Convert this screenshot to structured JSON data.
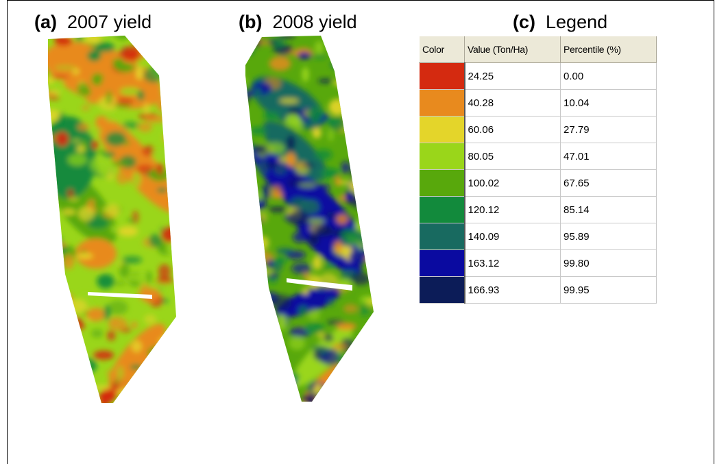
{
  "panels": {
    "a": {
      "letter": "(a)",
      "title": "2007 yield"
    },
    "b": {
      "letter": "(b)",
      "title": "2008 yield"
    },
    "c": {
      "letter": "(c)",
      "title": "Legend"
    }
  },
  "legend": {
    "headers": [
      "Color",
      "Value (Ton/Ha)",
      "Percentile (%)"
    ],
    "rows": [
      {
        "color": "#d42a10",
        "value": "24.25",
        "percentile": "0.00"
      },
      {
        "color": "#e88a1e",
        "value": "40.28",
        "percentile": "10.04"
      },
      {
        "color": "#e4d52a",
        "value": "60.06",
        "percentile": "27.79"
      },
      {
        "color": "#9ad61a",
        "value": "80.05",
        "percentile": "47.01"
      },
      {
        "color": "#58a80c",
        "value": "100.02",
        "percentile": "67.65"
      },
      {
        "color": "#128a3c",
        "value": "120.12",
        "percentile": "85.14"
      },
      {
        "color": "#186a60",
        "value": "140.09",
        "percentile": "95.89"
      },
      {
        "color": "#0a0aa0",
        "value": "163.12",
        "percentile": "99.80"
      },
      {
        "color": "#0c1c58",
        "value": "166.93",
        "percentile": "99.95"
      }
    ]
  },
  "maps": {
    "a": {
      "base_color": "#9ad61a",
      "patch_colors": [
        "#e88a1e",
        "#58a80c",
        "#128a3c",
        "#e4d52a",
        "#9ad61a",
        "#d42a10"
      ]
    },
    "b": {
      "base_color": "#58a80c",
      "patch_colors": [
        "#0a0aa0",
        "#186a60",
        "#9ad61a",
        "#128a3c",
        "#e4d52a",
        "#e88a1e",
        "#0c1c58"
      ]
    }
  }
}
